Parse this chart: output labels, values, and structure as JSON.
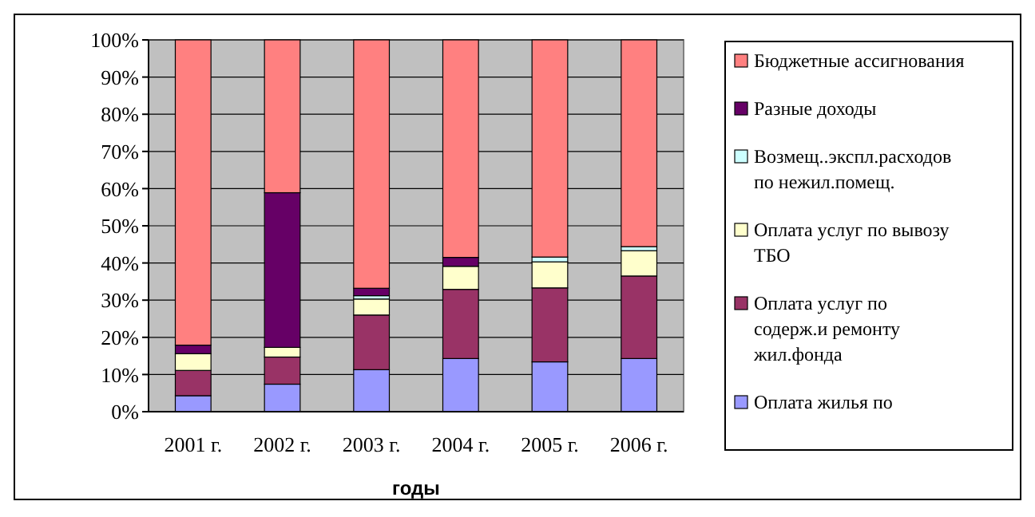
{
  "chart_data": {
    "type": "bar",
    "stacked": true,
    "xlabel": "годы",
    "categories": [
      "2001 г.",
      "2002 г.",
      "2003 г.",
      "2004 г.",
      "2005 г.",
      "2006 г."
    ],
    "ylim": [
      0,
      100
    ],
    "yticks": [
      {
        "value": 0,
        "label": "0%"
      },
      {
        "value": 10,
        "label": "10%"
      },
      {
        "value": 20,
        "label": "20%"
      },
      {
        "value": 30,
        "label": "30%"
      },
      {
        "value": 40,
        "label": "40%"
      },
      {
        "value": 50,
        "label": "50%"
      },
      {
        "value": 60,
        "label": "60%"
      },
      {
        "value": 70,
        "label": "70%"
      },
      {
        "value": 80,
        "label": "80%"
      },
      {
        "value": 90,
        "label": "90%"
      },
      {
        "value": 100,
        "label": "100%"
      }
    ],
    "grid": "y",
    "legend": "right",
    "series": [
      {
        "name": "Оплата жилья по",
        "color": "#9999ff",
        "values": [
          4.3,
          7.4,
          11.3,
          14.3,
          13.4,
          14.3
        ]
      },
      {
        "name": "Оплата услуг по содерж.и ремонту жил.фонда",
        "color": "#993366",
        "values": [
          6.8,
          7.3,
          14.7,
          18.6,
          19.9,
          22.2
        ]
      },
      {
        "name": "Оплата услуг по вывозу ТБО",
        "color": "#ffffcc",
        "values": [
          4.5,
          2.6,
          4.3,
          6.2,
          7.0,
          6.8
        ]
      },
      {
        "name": "Возмещ..экспл.расходов по нежил.помещ.",
        "color": "#ccffff",
        "values": [
          null,
          0,
          0.9,
          null,
          1.3,
          1.1
        ]
      },
      {
        "name": "Разные доходы",
        "color": "#660066",
        "values": [
          2.3,
          41.6,
          2.0,
          2.4,
          0,
          0
        ]
      },
      {
        "name": "Бюджетные ассигнования",
        "color": "#ff8080",
        "values": [
          82.1,
          41.1,
          66.8,
          58.5,
          58.4,
          55.6
        ]
      }
    ]
  }
}
